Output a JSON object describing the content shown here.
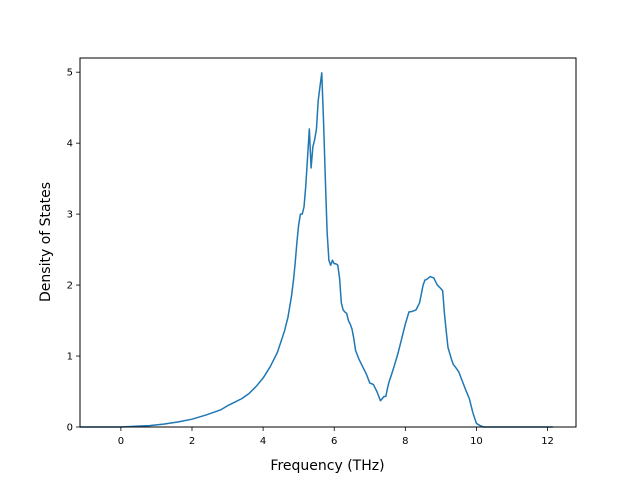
{
  "chart_data": {
    "type": "line",
    "title": "",
    "xlabel": "Frequency (THz)",
    "ylabel": "Density of States",
    "xlim": [
      -1.15,
      12.8
    ],
    "ylim": [
      0,
      5.2
    ],
    "xticks": [
      0,
      2,
      4,
      6,
      8,
      10,
      12
    ],
    "yticks": [
      0,
      1,
      2,
      3,
      4,
      5
    ],
    "grid": false,
    "legend": "none",
    "line_color": "#1f77b4",
    "series": [
      {
        "x": [
          -1.15,
          -0.8,
          -0.4,
          0.0,
          0.4,
          0.8,
          1.2,
          1.6,
          2.0,
          2.4,
          2.8,
          3.0,
          3.2,
          3.4,
          3.6,
          3.8,
          4.0,
          4.2,
          4.4,
          4.5,
          4.6,
          4.7,
          4.75,
          4.8,
          4.85,
          4.9,
          4.95,
          5.0,
          5.05,
          5.1,
          5.15,
          5.2,
          5.25,
          5.3,
          5.35,
          5.4,
          5.45,
          5.5,
          5.55,
          5.6,
          5.65,
          5.7,
          5.75,
          5.8,
          5.85,
          5.9,
          5.95,
          6.0,
          6.05,
          6.1,
          6.15,
          6.2,
          6.25,
          6.3,
          6.35,
          6.4,
          6.45,
          6.5,
          6.55,
          6.6,
          6.7,
          6.8,
          6.9,
          7.0,
          7.1,
          7.2,
          7.3,
          7.4,
          7.45,
          7.5,
          7.55,
          7.6,
          7.65,
          7.7,
          7.8,
          7.9,
          8.0,
          8.1,
          8.2,
          8.3,
          8.4,
          8.5,
          8.55,
          8.6,
          8.7,
          8.8,
          8.85,
          8.9,
          9.0,
          9.05,
          9.1,
          9.15,
          9.2,
          9.3,
          9.35,
          9.4,
          9.5,
          9.6,
          9.7,
          9.8,
          9.9,
          10.0,
          10.1,
          10.2,
          10.3,
          10.4,
          10.5,
          10.6,
          10.8,
          11.0,
          11.5,
          12.0,
          12.15
        ],
        "y": [
          0.0,
          0.0,
          0.0,
          0.0,
          0.01,
          0.02,
          0.04,
          0.07,
          0.11,
          0.17,
          0.24,
          0.3,
          0.35,
          0.4,
          0.47,
          0.57,
          0.69,
          0.85,
          1.05,
          1.2,
          1.35,
          1.55,
          1.7,
          1.85,
          2.05,
          2.3,
          2.6,
          2.85,
          3.0,
          3.0,
          3.1,
          3.4,
          3.8,
          4.2,
          3.65,
          3.95,
          4.05,
          4.2,
          4.6,
          4.8,
          4.99,
          4.3,
          3.5,
          2.75,
          2.35,
          2.28,
          2.35,
          2.3,
          2.3,
          2.28,
          2.1,
          1.75,
          1.65,
          1.62,
          1.6,
          1.5,
          1.45,
          1.38,
          1.25,
          1.08,
          0.95,
          0.85,
          0.75,
          0.62,
          0.6,
          0.5,
          0.37,
          0.43,
          0.43,
          0.55,
          0.65,
          0.72,
          0.8,
          0.88,
          1.05,
          1.25,
          1.45,
          1.62,
          1.63,
          1.65,
          1.75,
          2.0,
          2.07,
          2.08,
          2.12,
          2.1,
          2.05,
          2.0,
          1.95,
          1.92,
          1.6,
          1.35,
          1.12,
          0.95,
          0.88,
          0.85,
          0.78,
          0.65,
          0.52,
          0.4,
          0.2,
          0.05,
          0.02,
          0.0,
          0.0,
          0.0,
          0.0,
          0.0,
          0.0,
          0.0,
          0.0,
          0.0,
          0.0
        ]
      }
    ]
  }
}
